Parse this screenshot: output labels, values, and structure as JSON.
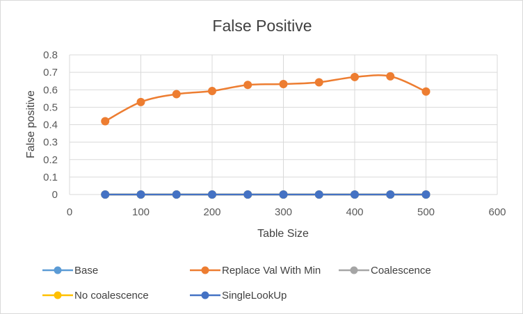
{
  "chart_data": {
    "type": "scatter",
    "title": "False Positive",
    "xlabel": "Table Size",
    "ylabel": "False positive",
    "xlim": [
      0,
      600
    ],
    "ylim": [
      0,
      0.8
    ],
    "x_ticks": [
      "0",
      "100",
      "200",
      "300",
      "400",
      "500",
      "600"
    ],
    "y_ticks": [
      "0",
      "0.1",
      "0.2",
      "0.3",
      "0.4",
      "0.5",
      "0.6",
      "0.7",
      "0.8"
    ],
    "grid": true,
    "legend_position": "bottom",
    "smooth_lines": true,
    "x": [
      50,
      100,
      150,
      200,
      250,
      300,
      350,
      400,
      450,
      500
    ],
    "series": [
      {
        "name": "Base",
        "color": "#5b9bd5",
        "values": [
          0,
          0,
          0,
          0,
          0,
          0,
          0,
          0,
          0,
          0
        ]
      },
      {
        "name": "Replace Val With Min",
        "color": "#ed7d31",
        "values": [
          0.42,
          0.53,
          0.575,
          0.593,
          0.628,
          0.633,
          0.643,
          0.673,
          0.677,
          0.59
        ]
      },
      {
        "name": "Coalescence",
        "color": "#a5a5a5",
        "values": [
          0,
          0,
          0,
          0,
          0,
          0,
          0,
          0,
          0,
          0
        ]
      },
      {
        "name": "No coalescence",
        "color": "#ffc000",
        "values": [
          0,
          0,
          0,
          0,
          0,
          0,
          0,
          0,
          0,
          0
        ]
      },
      {
        "name": "SingleLookUp",
        "color": "#4472c4",
        "values": [
          0,
          0,
          0,
          0,
          0,
          0,
          0,
          0,
          0,
          0
        ]
      }
    ]
  }
}
